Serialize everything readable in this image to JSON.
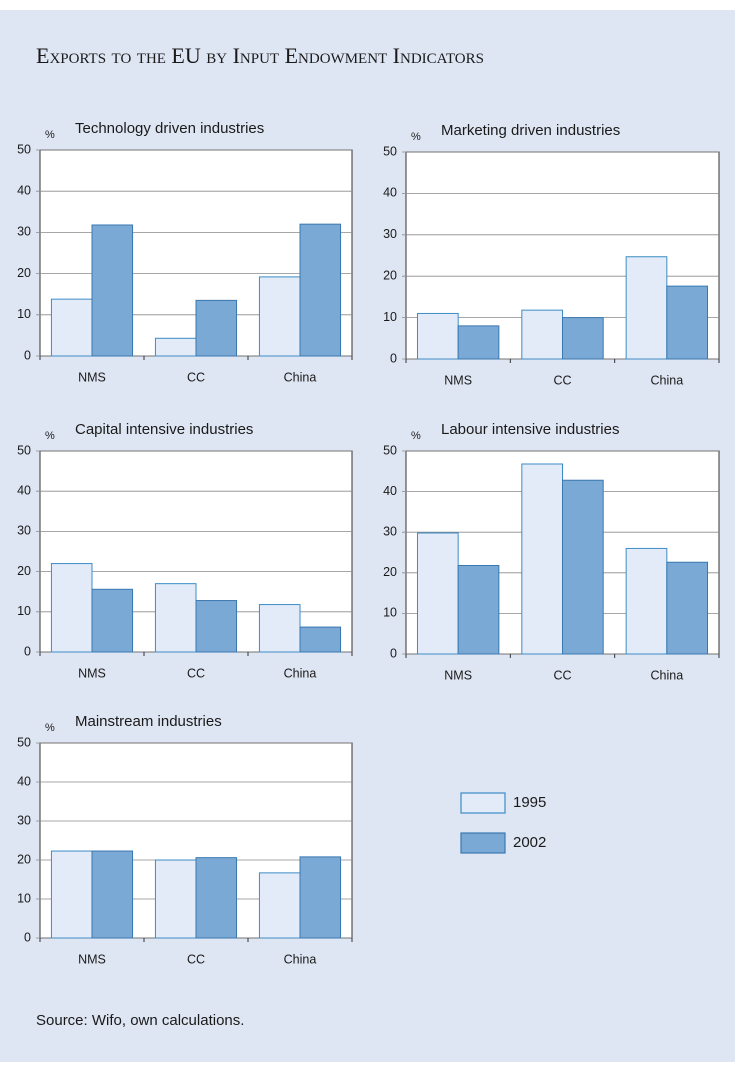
{
  "title": "Exports to the EU by Input Endowment Indicators",
  "source": "Source: Wifo, own calculations.",
  "chart_data": [
    {
      "type": "bar",
      "title": "Technology driven industries",
      "y_label": "%",
      "categories": [
        "NMS",
        "CC",
        "China"
      ],
      "series": [
        {
          "name": "1995",
          "color": "#e3ebf8",
          "values": [
            13.8,
            4.3,
            19.2
          ]
        },
        {
          "name": "2002",
          "color": "#7aa9d5",
          "values": [
            31.8,
            13.5,
            32
          ]
        }
      ],
      "ylim": [
        0,
        50
      ],
      "yticks": [
        0,
        10,
        20,
        30,
        40,
        50
      ],
      "grid": true
    },
    {
      "type": "bar",
      "title": "Marketing driven industries",
      "y_label": "%",
      "categories": [
        "NMS",
        "CC",
        "China"
      ],
      "series": [
        {
          "name": "1995",
          "color": "#e3ebf8",
          "values": [
            11,
            11.8,
            24.7
          ]
        },
        {
          "name": "2002",
          "color": "#7aa9d5",
          "values": [
            8,
            10,
            17.6
          ]
        }
      ],
      "ylim": [
        0,
        50
      ],
      "yticks": [
        0,
        10,
        20,
        30,
        40,
        50
      ],
      "grid": true
    },
    {
      "type": "bar",
      "title": "Capital intensive industries",
      "y_label": "%",
      "categories": [
        "NMS",
        "CC",
        "China"
      ],
      "series": [
        {
          "name": "1995",
          "color": "#e3ebf8",
          "values": [
            22,
            17,
            11.8
          ]
        },
        {
          "name": "2002",
          "color": "#7aa9d5",
          "values": [
            15.6,
            12.8,
            6.2
          ]
        }
      ],
      "ylim": [
        0,
        50
      ],
      "yticks": [
        0,
        10,
        20,
        30,
        40,
        50
      ],
      "grid": true
    },
    {
      "type": "bar",
      "title": "Labour intensive industries",
      "y_label": "%",
      "categories": [
        "NMS",
        "CC",
        "China"
      ],
      "series": [
        {
          "name": "1995",
          "color": "#e3ebf8",
          "values": [
            29.8,
            46.8,
            26
          ]
        },
        {
          "name": "2002",
          "color": "#7aa9d5",
          "values": [
            21.8,
            42.8,
            22.6
          ]
        }
      ],
      "ylim": [
        0,
        50
      ],
      "yticks": [
        0,
        10,
        20,
        30,
        40,
        50
      ],
      "grid": true
    },
    {
      "type": "bar",
      "title": "Mainstream industries",
      "y_label": "%",
      "categories": [
        "NMS",
        "CC",
        "China"
      ],
      "series": [
        {
          "name": "1995",
          "color": "#e3ebf8",
          "values": [
            22.3,
            20,
            16.7
          ]
        },
        {
          "name": "2002",
          "color": "#7aa9d5",
          "values": [
            22.3,
            20.6,
            20.8
          ]
        }
      ],
      "ylim": [
        0,
        50
      ],
      "yticks": [
        0,
        10,
        20,
        30,
        40,
        50
      ],
      "grid": true
    }
  ]
}
